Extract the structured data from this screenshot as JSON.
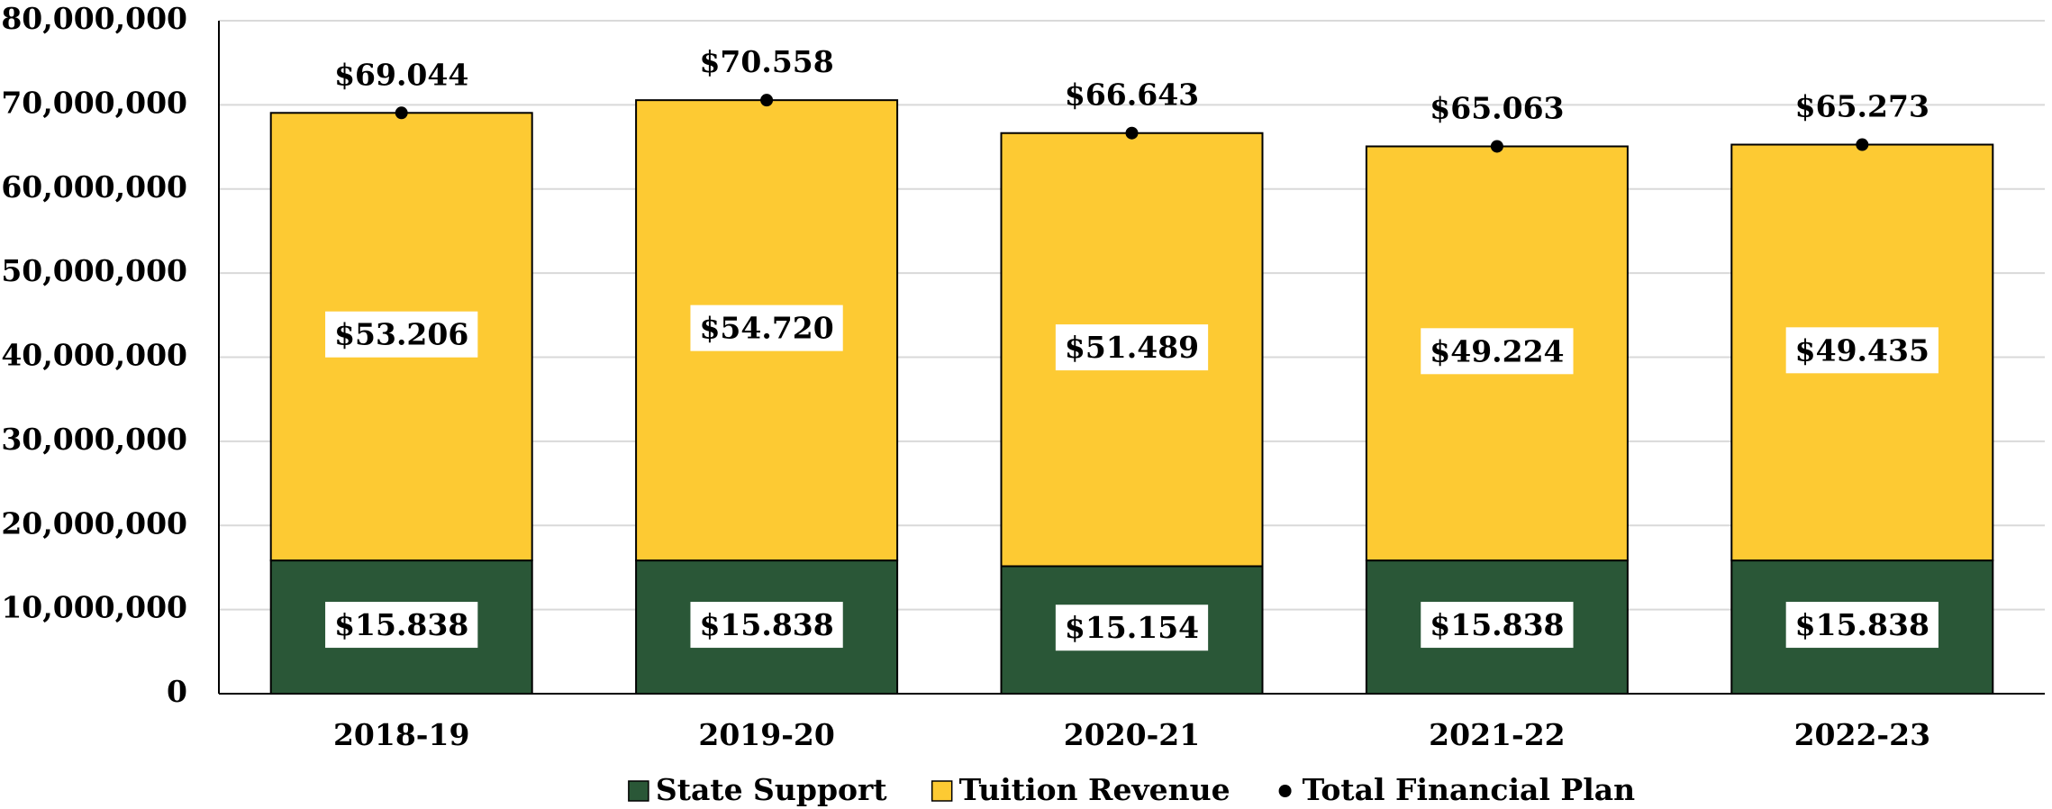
{
  "chart_data": {
    "type": "bar",
    "stacked": true,
    "categories": [
      "2018-19",
      "2019-20",
      "2020-21",
      "2021-22",
      "2022-23"
    ],
    "series": [
      {
        "name": "State Support",
        "color": "#2a5737",
        "values": [
          15838000,
          15838000,
          15154000,
          15838000,
          15838000
        ],
        "value_labels": [
          "$15.838",
          "$15.838",
          "$15.154",
          "$15.838",
          "$15.838"
        ]
      },
      {
        "name": "Tuition Revenue",
        "color": "#fdca33",
        "values": [
          53206000,
          54720000,
          51489000,
          49224000,
          49435000
        ],
        "value_labels": [
          "$53.206",
          "$54.720",
          "$51.489",
          "$49.224",
          "$49.435"
        ]
      },
      {
        "name": "Total Financial Plan",
        "type": "scatter",
        "color": "#000000",
        "values": [
          69044000,
          70558000,
          66643000,
          65063000,
          65273000
        ],
        "value_labels": [
          "$69.044",
          "$70.558",
          "$66.643",
          "$65.063",
          "$65.273"
        ]
      }
    ],
    "ylim": [
      0,
      80000000
    ],
    "yticks": [
      0,
      {
        "value": 10000000,
        "label": "10,000,000"
      },
      {
        "value": 20000000,
        "label": "20,000,000"
      },
      {
        "value": 30000000,
        "label": "30,000,000"
      },
      {
        "value": 40000000,
        "label": "40,000,000"
      },
      {
        "value": 50000000,
        "label": "50,000,000"
      },
      {
        "value": 60000000,
        "label": "60,000,000"
      },
      {
        "value": 70000000,
        "label": "70,000,000"
      },
      {
        "value": 80000000,
        "label": "80,000,000"
      }
    ],
    "grid": true,
    "legend": "bottom"
  }
}
